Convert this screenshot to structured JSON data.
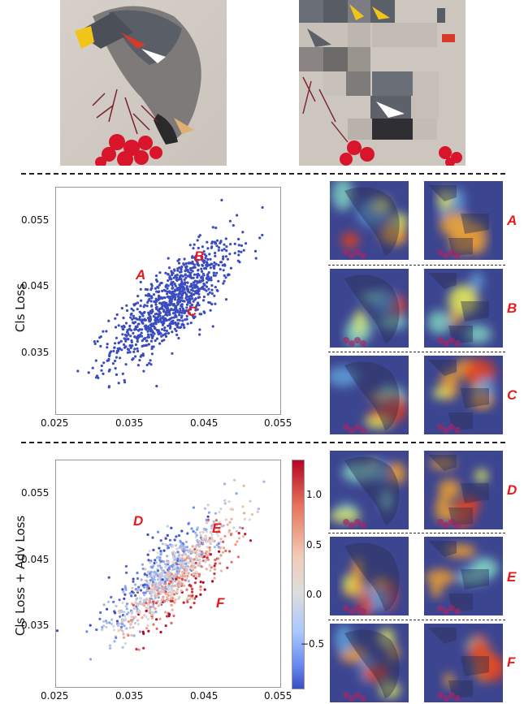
{
  "figure": {
    "top_images": [
      {
        "name": "original-bird"
      },
      {
        "name": "shuffled-bird"
      }
    ],
    "plot1": {
      "ylabel": "Cls Loss",
      "xticks": [
        "0.025",
        "0.035",
        "0.045",
        "0.055"
      ],
      "yticks": [
        "0.055",
        "0.045",
        "0.035"
      ],
      "markers": [
        {
          "label": "A",
          "x": 0.0371,
          "y": 0.0461
        },
        {
          "label": "B",
          "x": 0.0444,
          "y": 0.0489
        },
        {
          "label": "C",
          "x": 0.0434,
          "y": 0.0409
        }
      ],
      "cam_labels": [
        "A",
        "B",
        "C"
      ]
    },
    "plot2": {
      "ylabel": "Cls Loss + Adv Loss",
      "xticks": [
        "0.025",
        "0.035",
        "0.045",
        "0.055"
      ],
      "yticks": [
        "0.055",
        "0.045",
        "0.035"
      ],
      "markers": [
        {
          "label": "D",
          "x": 0.0371,
          "y": 0.0514
        },
        {
          "label": "E",
          "x": 0.0432,
          "y": 0.05
        },
        {
          "label": "F",
          "x": 0.0437,
          "y": 0.0411
        }
      ],
      "cam_labels": [
        "D",
        "E",
        "F"
      ],
      "colorbar": {
        "ticks": [
          "1.0",
          "0.5",
          "0.0",
          "−0.5"
        ],
        "range": [
          -1.0,
          1.4
        ]
      }
    }
  },
  "chart_data": [
    {
      "type": "scatter",
      "title": "",
      "xlabel": "",
      "ylabel": "Cls Loss",
      "xlim": [
        0.025,
        0.055
      ],
      "ylim": [
        0.025,
        0.0585
      ],
      "grid": false,
      "series": [
        {
          "color": "#3b4cc0",
          "points": "approximately 1000 points, positively correlated, centered near (0.040, 0.042)"
        }
      ],
      "annotations": [
        "A",
        "B",
        "C"
      ]
    },
    {
      "type": "scatter",
      "title": "",
      "xlabel": "",
      "ylabel": "Cls Loss + Adv Loss",
      "xlim": [
        0.025,
        0.055
      ],
      "ylim": [
        0.025,
        0.0585
      ],
      "grid": false,
      "colormap": "coolwarm",
      "color_range": [
        -1.0,
        1.4
      ],
      "series": [
        {
          "points": "approximately 1000 points, positively correlated, colored by value; blue points concentrated upper-left, red lower-right"
        }
      ],
      "annotations": [
        "D",
        "E",
        "F"
      ]
    }
  ]
}
